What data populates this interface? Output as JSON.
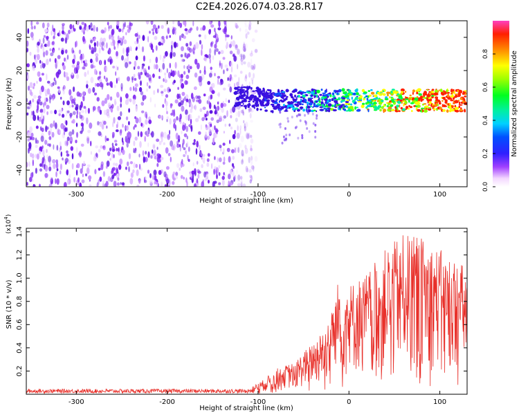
{
  "title": "C2E4.2026.074.03.28.R17",
  "colors": {
    "snr_line": "#e8302a",
    "dot_base": "#6a0fe0",
    "axes": "#000000",
    "background": "#ffffff"
  },
  "chart_data": [
    {
      "type": "heatmap",
      "name": "spectrogram",
      "xlabel": "Height of straight line (km)",
      "ylabel": "Frequency (Hz)",
      "xlim": [
        -355,
        130
      ],
      "ylim": [
        -50,
        50
      ],
      "xticks": [
        -300,
        -200,
        -100,
        0,
        100
      ],
      "xtick_labels": [
        "-300",
        "-200",
        "-100",
        "0",
        "100"
      ],
      "yticks": [
        -40,
        -20,
        0,
        20,
        40
      ],
      "ytick_labels": [
        "-40",
        "-20",
        "0",
        "20",
        "40"
      ],
      "noise_region_km": [
        -355,
        -108
      ],
      "signal_band_hz": [
        -5,
        8
      ],
      "signal_start_km": -125,
      "colorbar": {
        "label": "Normalized spectral amplitude",
        "range": [
          0,
          1
        ],
        "ticks": [
          0.0,
          0.2,
          0.4,
          0.6,
          0.8
        ],
        "tick_labels": [
          "0.0",
          "0.2",
          "0.4",
          "0.6",
          "0.8"
        ]
      }
    },
    {
      "type": "line",
      "name": "snr",
      "xlabel": "Height of straight line (km)",
      "ylabel": "SNR (10 * v/v)",
      "y_multiplier": "(x10",
      "y_multiplier_exp": "4",
      "y_multiplier_close": ")",
      "xlim": [
        -355,
        130
      ],
      "ylim": [
        0,
        1.43
      ],
      "xticks": [
        -300,
        -200,
        -100,
        0,
        100
      ],
      "xtick_labels": [
        "-300",
        "-200",
        "-100",
        "0",
        "100"
      ],
      "yticks": [
        0.2,
        0.4,
        0.6,
        0.8,
        1.0,
        1.2,
        1.4
      ],
      "ytick_labels": [
        "0.2",
        "0.4",
        "0.6",
        "0.8",
        "1.0",
        "1.2",
        "1.4"
      ],
      "envelope_km": [
        -355,
        -110,
        -95,
        -80,
        -60,
        -40,
        -30,
        -20,
        -10,
        0,
        20,
        40,
        60,
        80,
        100,
        130
      ],
      "envelope_snr": [
        0.04,
        0.05,
        0.12,
        0.22,
        0.28,
        0.45,
        0.55,
        0.7,
        1.05,
        0.95,
        1.05,
        1.25,
        1.38,
        1.35,
        1.25,
        1.1
      ]
    }
  ]
}
